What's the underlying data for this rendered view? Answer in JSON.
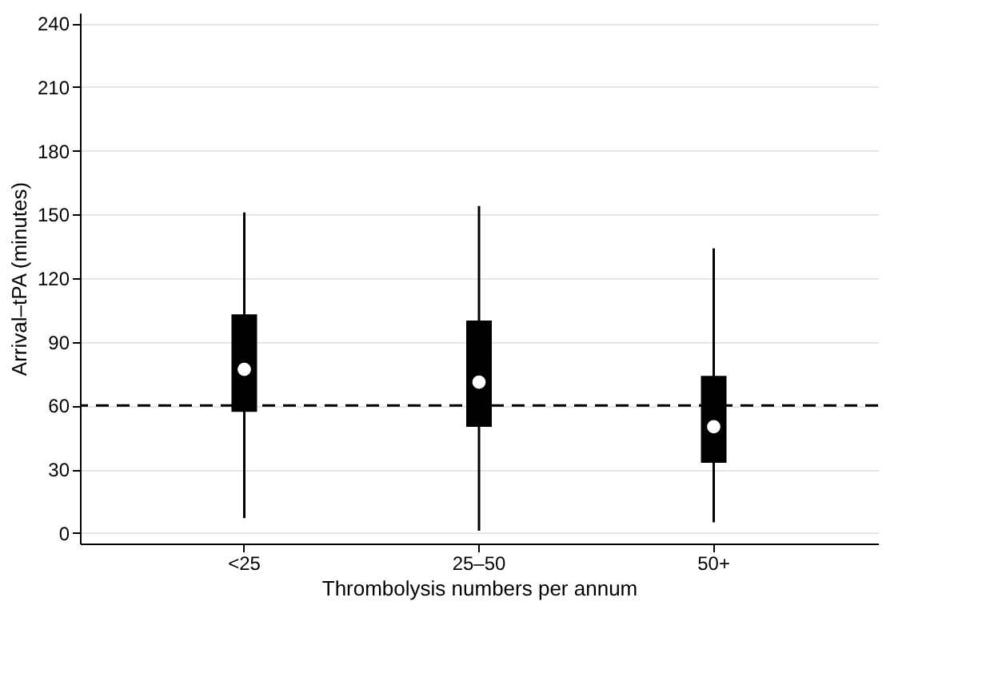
{
  "chart_data": {
    "type": "box",
    "xlabel": "Thrombolysis numbers per annum",
    "ylabel": "Arrival–tPA (minutes)",
    "categories": [
      "<25",
      "25–50",
      "50+"
    ],
    "boxes": [
      {
        "low": 7,
        "q1": 57,
        "median": 77,
        "q3": 103,
        "high": 151
      },
      {
        "low": 1,
        "q1": 50,
        "median": 71,
        "q3": 100,
        "high": 154
      },
      {
        "low": 5,
        "q1": 33,
        "median": 50,
        "q3": 74,
        "high": 134
      }
    ],
    "color": "#000000",
    "ylim": [
      -5,
      245
    ],
    "yticks": [
      0,
      30,
      60,
      90,
      120,
      150,
      180,
      210,
      240
    ],
    "grid": "y",
    "ref_lines": [
      {
        "axis": "y",
        "value": 60,
        "color": "#000000",
        "line_style": "dashed"
      }
    ]
  }
}
